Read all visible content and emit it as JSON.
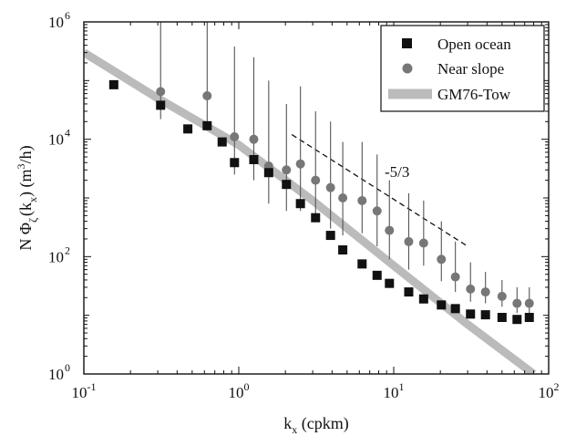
{
  "chart_data": {
    "type": "scatter",
    "xscale": "log",
    "yscale": "log",
    "xlim": [
      0.1,
      100
    ],
    "ylim": [
      1,
      1000000
    ],
    "grid": false,
    "legend_position": "top-right",
    "xlabel": {
      "main": "k",
      "sub": "x",
      "rest": " (cpkm)"
    },
    "ylabel": {
      "p1": "N Φ",
      "sub1": "ζ",
      "p2": "(k",
      "sub2": "x",
      "p3": ") (m",
      "sup": "3",
      "p4": "/h)"
    },
    "x_ticks": [
      {
        "value": 0.1,
        "base": "10",
        "exp": "-1"
      },
      {
        "value": 1,
        "base": "10",
        "exp": "0"
      },
      {
        "value": 10,
        "base": "10",
        "exp": "1"
      },
      {
        "value": 100,
        "base": "10",
        "exp": "2"
      }
    ],
    "y_ticks": [
      {
        "value": 1,
        "base": "10",
        "exp": "0"
      },
      {
        "value": 100,
        "base": "10",
        "exp": "2"
      },
      {
        "value": 10000,
        "base": "10",
        "exp": "4"
      },
      {
        "value": 1000000,
        "base": "10",
        "exp": "6"
      }
    ],
    "series": [
      {
        "name": "Open ocean",
        "marker": "square",
        "color": "#111111",
        "x": [
          0.156,
          0.313,
          0.469,
          0.625,
          0.781,
          0.938,
          1.25,
          1.56,
          2.03,
          2.5,
          3.13,
          3.91,
          4.69,
          6.25,
          7.81,
          9.38,
          12.5,
          15.6,
          20.3,
          25,
          31.3,
          39.1,
          50,
          62.5,
          75
        ],
        "y": [
          85000,
          38000,
          15000,
          17000,
          9000,
          4000,
          4500,
          2700,
          1700,
          800,
          460,
          230,
          130,
          75,
          48,
          35,
          25,
          19,
          15,
          13,
          10.5,
          10.2,
          9.2,
          8.5,
          9.2
        ]
      },
      {
        "name": "Near slope",
        "marker": "circle",
        "color": "#777777",
        "x": [
          0.313,
          0.625,
          0.938,
          1.25,
          1.56,
          2.03,
          2.5,
          3.13,
          3.91,
          4.69,
          6.25,
          7.81,
          9.38,
          12.5,
          15.6,
          20.3,
          25,
          31.3,
          39.1,
          50,
          62.5,
          75
        ],
        "y": [
          65000,
          55000,
          11000,
          10000,
          3500,
          3000,
          3800,
          2000,
          1500,
          1000,
          900,
          600,
          280,
          180,
          170,
          90,
          45,
          28,
          25,
          21,
          16,
          16
        ],
        "err_low": [
          22000,
          18000,
          2500,
          2000,
          800,
          600,
          600,
          400,
          300,
          230,
          250,
          150,
          90,
          60,
          70,
          38,
          25,
          17,
          16,
          14,
          11,
          11
        ],
        "err_high": [
          1000000,
          1000000,
          380000,
          250000,
          100000,
          40000,
          80000,
          30000,
          20000,
          9000,
          9000,
          5500,
          2000,
          1200,
          900,
          400,
          180,
          80,
          55,
          40,
          30,
          30
        ]
      },
      {
        "name": "GM76-Tow",
        "type": "line",
        "color": "#bbbbbb",
        "x": [
          0.1,
          0.3,
          1,
          3,
          10,
          30,
          80
        ],
        "y": [
          300000,
          50000,
          8000,
          900,
          70,
          7,
          1
        ]
      }
    ],
    "reference_line": {
      "label": "-5/3",
      "x": [
        2.2,
        30
      ],
      "y": [
        12000,
        150
      ]
    }
  }
}
